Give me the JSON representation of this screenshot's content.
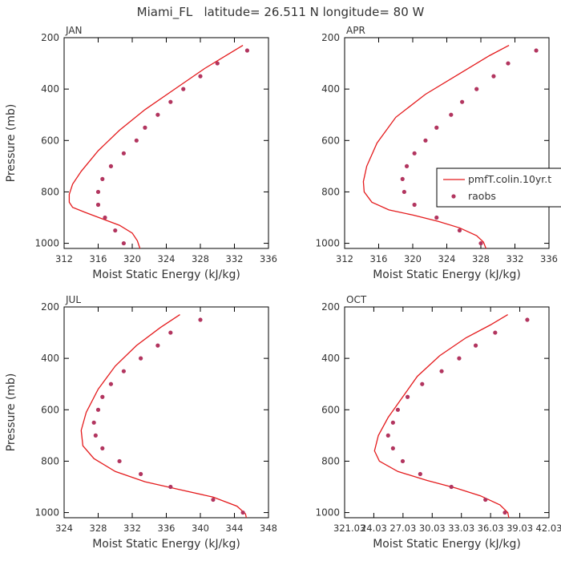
{
  "title": "Miami_FL   latitude= 26.511 N longitude= 80 W",
  "colors": {
    "model": "#e41a1c",
    "obs": "#b2355f",
    "axis": "#000000",
    "text": "#333333"
  },
  "legend": {
    "model_label": "pmfT.colin.10yr.t",
    "obs_label": "raobs",
    "placement": "right-middle of APR panel"
  },
  "chart_data": [
    {
      "type": "line",
      "panel": "JAN",
      "xlabel": "Moist Static Energy (kJ/kg)",
      "ylabel": "Pressure (mb)",
      "xlim": [
        312,
        336
      ],
      "ylim": [
        1020,
        200
      ],
      "xticks": [
        312,
        316,
        320,
        324,
        328,
        332,
        336
      ],
      "xtick_labels": [
        "312",
        "316",
        "320",
        "324",
        "328",
        "332",
        "336"
      ],
      "yticks": [
        200,
        400,
        600,
        800,
        1000
      ],
      "series": [
        {
          "name": "pmfT.colin.10yr.t",
          "kind": "line",
          "points": [
            [
              333.0,
              230
            ],
            [
              331.5,
              260
            ],
            [
              328.5,
              320
            ],
            [
              325.0,
              400
            ],
            [
              321.5,
              480
            ],
            [
              318.5,
              560
            ],
            [
              316.0,
              640
            ],
            [
              314.0,
              720
            ],
            [
              313.0,
              770
            ],
            [
              312.6,
              810
            ],
            [
              312.6,
              840
            ],
            [
              313.0,
              860
            ],
            [
              314.5,
              880
            ],
            [
              316.5,
              905
            ],
            [
              318.5,
              930
            ],
            [
              320.0,
              960
            ],
            [
              320.6,
              990
            ],
            [
              320.9,
              1020
            ]
          ]
        },
        {
          "name": "raobs",
          "kind": "scatter",
          "points": [
            [
              333.5,
              250
            ],
            [
              330.0,
              300
            ],
            [
              328.0,
              350
            ],
            [
              326.0,
              400
            ],
            [
              324.5,
              450
            ],
            [
              323.0,
              500
            ],
            [
              321.5,
              550
            ],
            [
              320.5,
              600
            ],
            [
              319.0,
              650
            ],
            [
              317.5,
              700
            ],
            [
              316.5,
              750
            ],
            [
              316.0,
              800
            ],
            [
              316.0,
              850
            ],
            [
              316.8,
              900
            ],
            [
              318.0,
              950
            ],
            [
              319.0,
              1000
            ]
          ]
        }
      ]
    },
    {
      "type": "line",
      "panel": "APR",
      "xlabel": "Moist Static Energy (kJ/kg)",
      "ylabel": "",
      "xlim": [
        312,
        336
      ],
      "ylim": [
        1020,
        200
      ],
      "xticks": [
        312,
        316,
        320,
        324,
        328,
        332,
        336
      ],
      "xtick_labels": [
        "312",
        "316",
        "320",
        "324",
        "328",
        "332",
        "336"
      ],
      "yticks": [
        200,
        400,
        600,
        800,
        1000
      ],
      "series": [
        {
          "name": "pmfT.colin.10yr.t",
          "kind": "line",
          "points": [
            [
              331.3,
              230
            ],
            [
              329.0,
              270
            ],
            [
              325.5,
              340
            ],
            [
              321.5,
              420
            ],
            [
              318.0,
              510
            ],
            [
              315.8,
              610
            ],
            [
              314.6,
              700
            ],
            [
              314.2,
              760
            ],
            [
              314.3,
              800
            ],
            [
              315.2,
              840
            ],
            [
              317.2,
              870
            ],
            [
              320.0,
              890
            ],
            [
              323.0,
              915
            ],
            [
              325.5,
              940
            ],
            [
              327.5,
              970
            ],
            [
              328.3,
              995
            ],
            [
              328.6,
              1020
            ]
          ]
        },
        {
          "name": "raobs",
          "kind": "scatter",
          "points": [
            [
              334.5,
              250
            ],
            [
              331.2,
              300
            ],
            [
              329.5,
              350
            ],
            [
              327.5,
              400
            ],
            [
              325.8,
              450
            ],
            [
              324.5,
              500
            ],
            [
              322.8,
              550
            ],
            [
              321.5,
              600
            ],
            [
              320.2,
              650
            ],
            [
              319.3,
              700
            ],
            [
              318.8,
              750
            ],
            [
              319.0,
              800
            ],
            [
              320.2,
              850
            ],
            [
              322.8,
              900
            ],
            [
              325.5,
              950
            ],
            [
              328.0,
              1000
            ]
          ]
        }
      ]
    },
    {
      "type": "line",
      "panel": "JUL",
      "xlabel": "Moist Static Energy (kJ/kg)",
      "ylabel": "Pressure (mb)",
      "xlim": [
        324,
        348
      ],
      "ylim": [
        1020,
        200
      ],
      "xticks": [
        324,
        328,
        332,
        336,
        340,
        344,
        348
      ],
      "xtick_labels": [
        "324",
        "328",
        "332",
        "336",
        "340",
        "344",
        "348"
      ],
      "yticks": [
        200,
        400,
        600,
        800,
        1000
      ],
      "series": [
        {
          "name": "pmfT.colin.10yr.t",
          "kind": "line",
          "points": [
            [
              337.6,
              230
            ],
            [
              335.3,
              280
            ],
            [
              332.5,
              350
            ],
            [
              330.0,
              430
            ],
            [
              328.0,
              520
            ],
            [
              326.6,
              610
            ],
            [
              326.0,
              680
            ],
            [
              326.2,
              740
            ],
            [
              327.5,
              790
            ],
            [
              330.0,
              840
            ],
            [
              333.5,
              880
            ],
            [
              337.5,
              910
            ],
            [
              341.5,
              940
            ],
            [
              344.3,
              975
            ],
            [
              345.3,
              1005
            ],
            [
              345.4,
              1020
            ]
          ]
        },
        {
          "name": "raobs",
          "kind": "scatter",
          "points": [
            [
              340.0,
              250
            ],
            [
              336.5,
              300
            ],
            [
              335.0,
              350
            ],
            [
              333.0,
              400
            ],
            [
              331.0,
              450
            ],
            [
              329.5,
              500
            ],
            [
              328.5,
              550
            ],
            [
              328.0,
              600
            ],
            [
              327.5,
              650
            ],
            [
              327.7,
              700
            ],
            [
              328.5,
              750
            ],
            [
              330.5,
              800
            ],
            [
              333.0,
              850
            ],
            [
              336.5,
              900
            ],
            [
              341.5,
              950
            ],
            [
              345.0,
              1000
            ]
          ]
        }
      ]
    },
    {
      "type": "line",
      "panel": "OCT",
      "xlabel": "Moist Static Energy (kJ/kg)",
      "ylabel": "",
      "xlim": [
        321.03,
        342.03
      ],
      "ylim": [
        1020,
        200
      ],
      "xticks": [
        321.03,
        324.03,
        327.03,
        330.03,
        333.03,
        336.03,
        339.03,
        342.03
      ],
      "xtick_labels": [
        "321.03",
        "24.03",
        "27.03",
        "30.03",
        "33.03",
        "36.03",
        "39.03",
        "42.03"
      ],
      "yticks": [
        200,
        400,
        600,
        800,
        1000
      ],
      "series": [
        {
          "name": "pmfT.colin.10yr.t",
          "kind": "line",
          "points": [
            [
              337.8,
              230
            ],
            [
              336.0,
              270
            ],
            [
              333.5,
              320
            ],
            [
              330.8,
              390
            ],
            [
              328.5,
              470
            ],
            [
              327.0,
              550
            ],
            [
              325.5,
              630
            ],
            [
              324.5,
              700
            ],
            [
              324.1,
              760
            ],
            [
              324.6,
              800
            ],
            [
              326.5,
              840
            ],
            [
              329.5,
              875
            ],
            [
              332.5,
              905
            ],
            [
              335.0,
              935
            ],
            [
              337.0,
              970
            ],
            [
              337.8,
              1000
            ],
            [
              337.9,
              1020
            ]
          ]
        },
        {
          "name": "raobs",
          "kind": "scatter",
          "points": [
            [
              339.8,
              250
            ],
            [
              336.5,
              300
            ],
            [
              334.5,
              350
            ],
            [
              332.8,
              400
            ],
            [
              331.0,
              450
            ],
            [
              329.0,
              500
            ],
            [
              327.5,
              550
            ],
            [
              326.5,
              600
            ],
            [
              326.0,
              650
            ],
            [
              325.5,
              700
            ],
            [
              326.0,
              750
            ],
            [
              327.0,
              800
            ],
            [
              328.8,
              850
            ],
            [
              332.0,
              900
            ],
            [
              335.5,
              950
            ],
            [
              337.5,
              1000
            ]
          ]
        }
      ]
    }
  ]
}
